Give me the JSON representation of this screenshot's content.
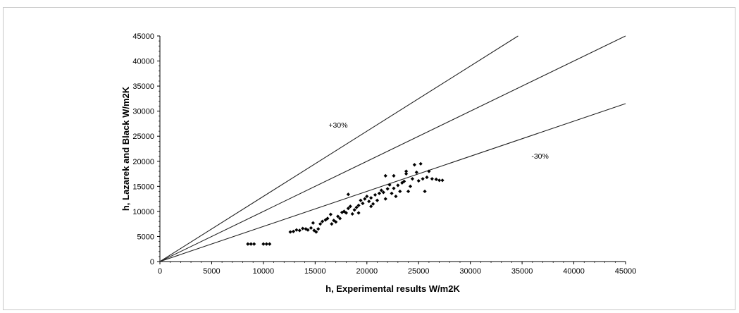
{
  "chart_data": {
    "type": "scatter",
    "title": "",
    "xlabel": "h, Experimental results W/m2K",
    "ylabel": "h, Lazarek and Black W/m2K",
    "xlim": [
      0,
      45000
    ],
    "ylim": [
      0,
      45000
    ],
    "x_ticks": [
      "0",
      "5000",
      "10000",
      "15000",
      "20000",
      "25000",
      "30000",
      "35000",
      "40000",
      "45000"
    ],
    "y_ticks": [
      "0",
      "5000",
      "10000",
      "15000",
      "20000",
      "25000",
      "30000",
      "35000",
      "40000",
      "45000"
    ],
    "grid": false,
    "legend": "none",
    "reference_lines": [
      {
        "slope": 1.3,
        "label": "+30%"
      },
      {
        "slope": 1.0,
        "label": ""
      },
      {
        "slope": 0.7,
        "label": "-30%"
      }
    ],
    "annotations": [
      {
        "text": "+30%",
        "x": 16300,
        "y": 26700
      },
      {
        "text": "-30%",
        "x": 35900,
        "y": 20500
      }
    ],
    "series": [
      {
        "points": [
          [
            8500,
            3500
          ],
          [
            8800,
            3500
          ],
          [
            9100,
            3500
          ],
          [
            10000,
            3500
          ],
          [
            10300,
            3500
          ],
          [
            10600,
            3500
          ],
          [
            12600,
            5900
          ],
          [
            12900,
            6000
          ],
          [
            13200,
            6300
          ],
          [
            13500,
            6200
          ],
          [
            13800,
            6600
          ],
          [
            14100,
            6500
          ],
          [
            14300,
            6300
          ],
          [
            14600,
            6700
          ],
          [
            14900,
            6200
          ],
          [
            15100,
            5900
          ],
          [
            15300,
            6500
          ],
          [
            14800,
            7700
          ],
          [
            15500,
            7500
          ],
          [
            15700,
            8000
          ],
          [
            16000,
            8300
          ],
          [
            16200,
            8600
          ],
          [
            16500,
            9400
          ],
          [
            16800,
            8200
          ],
          [
            17000,
            7900
          ],
          [
            17200,
            9000
          ],
          [
            17400,
            8600
          ],
          [
            17600,
            9800
          ],
          [
            17800,
            10000
          ],
          [
            18000,
            9700
          ],
          [
            18200,
            10600
          ],
          [
            18400,
            11000
          ],
          [
            18600,
            9500
          ],
          [
            18800,
            10300
          ],
          [
            19000,
            10800
          ],
          [
            19200,
            11200
          ],
          [
            19400,
            12200
          ],
          [
            19600,
            11600
          ],
          [
            19800,
            12500
          ],
          [
            20000,
            13000
          ],
          [
            20200,
            12000
          ],
          [
            20400,
            12700
          ],
          [
            20600,
            11500
          ],
          [
            20800,
            13300
          ],
          [
            21000,
            12200
          ],
          [
            21200,
            13600
          ],
          [
            21400,
            14200
          ],
          [
            21600,
            13800
          ],
          [
            21800,
            12500
          ],
          [
            22000,
            14500
          ],
          [
            22200,
            15300
          ],
          [
            22400,
            13600
          ],
          [
            22600,
            14600
          ],
          [
            22800,
            13000
          ],
          [
            23000,
            15200
          ],
          [
            23200,
            14000
          ],
          [
            23400,
            15700
          ],
          [
            23600,
            16000
          ],
          [
            23800,
            17500
          ],
          [
            24000,
            14000
          ],
          [
            24200,
            15000
          ],
          [
            24400,
            16500
          ],
          [
            24600,
            19300
          ],
          [
            24800,
            17800
          ],
          [
            25000,
            16100
          ],
          [
            25200,
            19500
          ],
          [
            25400,
            16500
          ],
          [
            25600,
            14000
          ],
          [
            25800,
            16800
          ],
          [
            26000,
            18000
          ],
          [
            26300,
            16500
          ],
          [
            26700,
            16400
          ],
          [
            27000,
            16200
          ],
          [
            27300,
            16200
          ],
          [
            18200,
            13400
          ],
          [
            21800,
            17100
          ],
          [
            22600,
            17100
          ],
          [
            23800,
            18000
          ],
          [
            16600,
            7500
          ],
          [
            19200,
            9700
          ],
          [
            20400,
            11000
          ]
        ]
      }
    ]
  }
}
